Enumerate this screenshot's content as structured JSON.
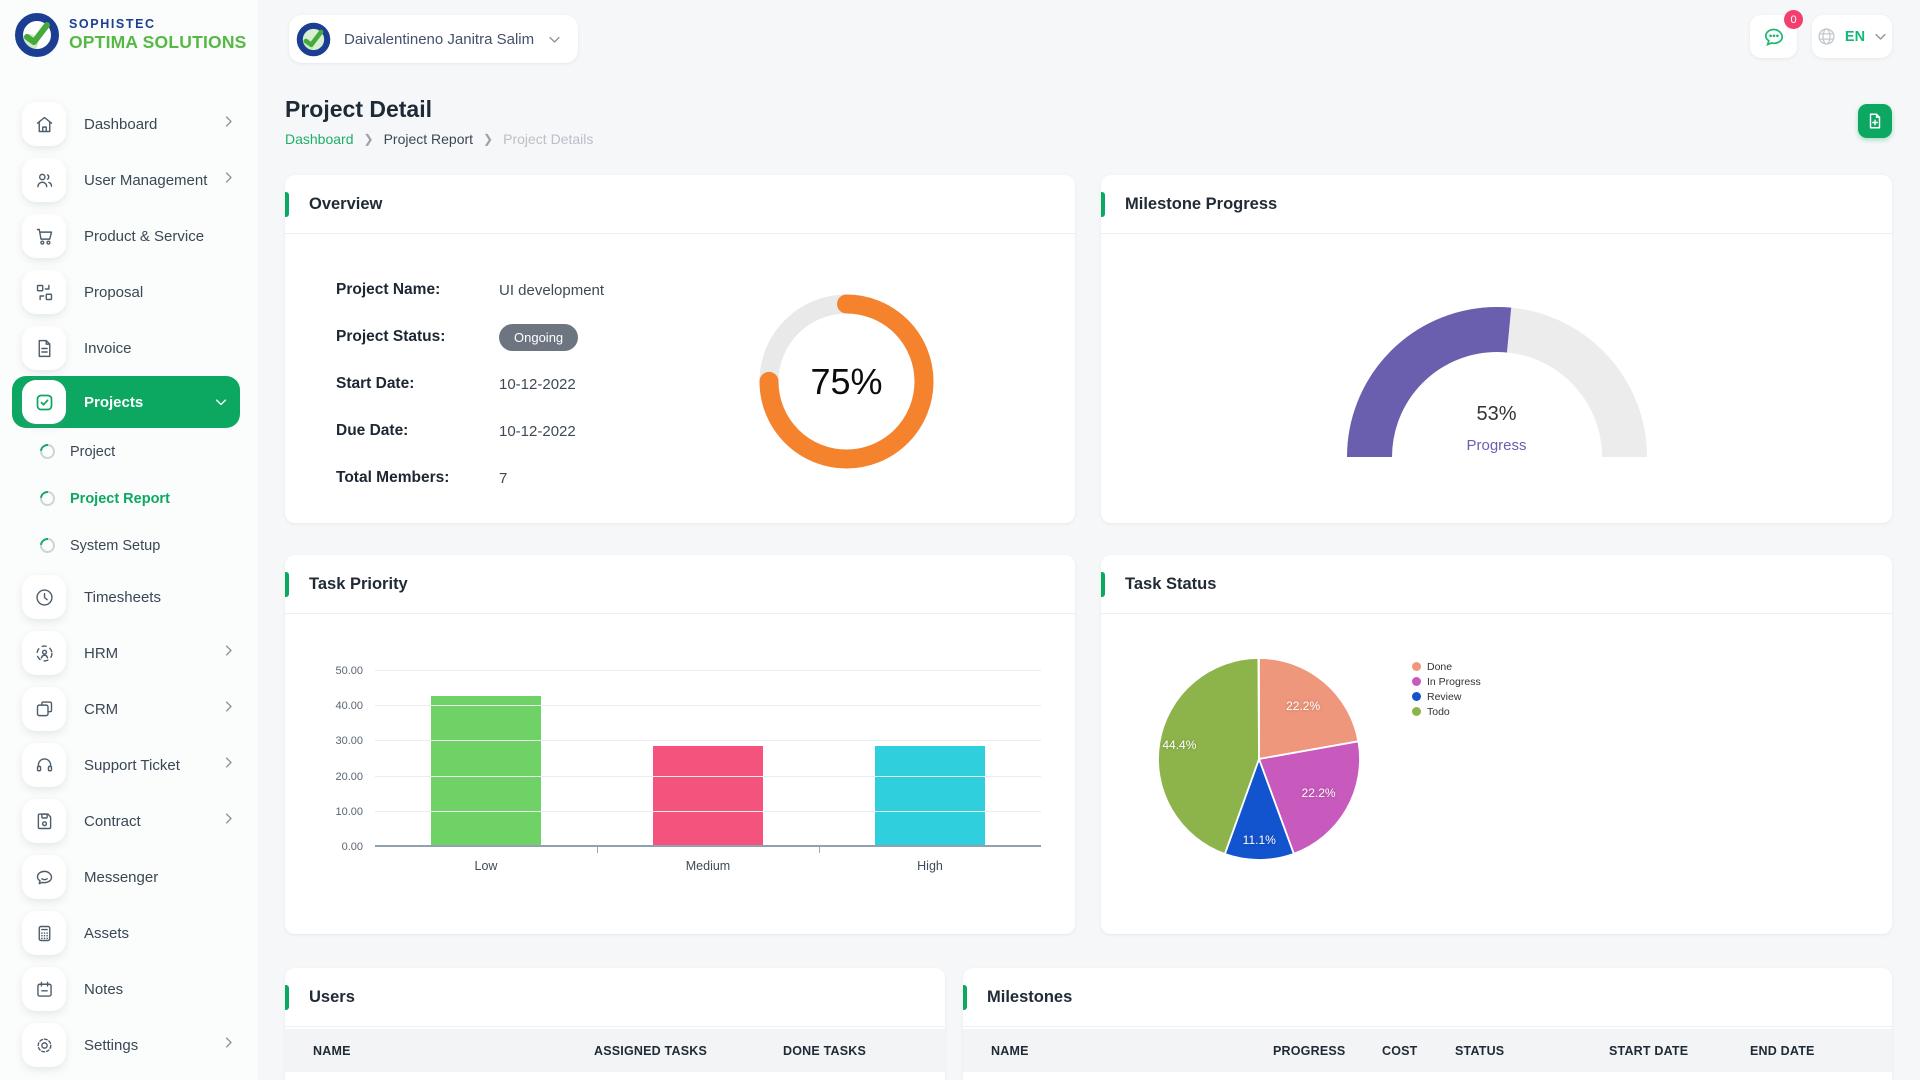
{
  "brand": {
    "line1": "SOPHISTEC",
    "line2": "OPTIMA SOLUTIONS"
  },
  "header": {
    "user_name": "Daivalentineno Janitra Salim",
    "chat_badge": "0",
    "language": "EN"
  },
  "page": {
    "title": "Project Detail",
    "breadcrumb": [
      "Dashboard",
      "Project Report",
      "Project Details"
    ]
  },
  "sidebar": {
    "items": [
      {
        "label": "Dashboard",
        "icon": "home-icon",
        "chevron": true
      },
      {
        "label": "User Management",
        "icon": "users-icon",
        "chevron": true
      },
      {
        "label": "Product & Service",
        "icon": "cart-icon",
        "chevron": false
      },
      {
        "label": "Proposal",
        "icon": "proposal-icon",
        "chevron": false
      },
      {
        "label": "Invoice",
        "icon": "invoice-icon",
        "chevron": false
      },
      {
        "label": "Projects",
        "icon": "checkbox-icon",
        "chevron": true,
        "active": true,
        "expanded": true
      },
      {
        "label": "Timesheets",
        "icon": "clock-icon",
        "chevron": false
      },
      {
        "label": "HRM",
        "icon": "person-focus-icon",
        "chevron": true
      },
      {
        "label": "CRM",
        "icon": "squares-icon",
        "chevron": true
      },
      {
        "label": "Support Ticket",
        "icon": "headset-icon",
        "chevron": true
      },
      {
        "label": "Contract",
        "icon": "floppy-icon",
        "chevron": true
      },
      {
        "label": "Messenger",
        "icon": "chat-bubble-icon",
        "chevron": false
      },
      {
        "label": "Assets",
        "icon": "calculator-icon",
        "chevron": false
      },
      {
        "label": "Notes",
        "icon": "calendar-icon",
        "chevron": false
      },
      {
        "label": "Settings",
        "icon": "gear-icon",
        "chevron": true
      }
    ],
    "subitems": [
      {
        "label": "Project",
        "active": false
      },
      {
        "label": "Project Report",
        "active": true
      },
      {
        "label": "System Setup",
        "active": false
      }
    ]
  },
  "cards": {
    "overview_title": "Overview",
    "milestone_title": "Milestone Progress",
    "priority_title": "Task Priority",
    "status_title": "Task Status",
    "users_title": "Users",
    "milestones_title": "Milestones"
  },
  "overview": {
    "fields": [
      {
        "label": "Project Name:",
        "value": "UI development"
      },
      {
        "label": "Project Status:",
        "value": "Ongoing"
      },
      {
        "label": "Start Date:",
        "value": "10-12-2022"
      },
      {
        "label": "Due Date:",
        "value": "10-12-2022"
      },
      {
        "label": "Total Members:",
        "value": "7"
      }
    ]
  },
  "chart_data": [
    {
      "type": "donut",
      "title": "Overview",
      "value": 75,
      "label": "75%",
      "color": "#f5832d",
      "track_color": "#e9e9e9"
    },
    {
      "type": "gauge",
      "title": "Milestone Progress",
      "value": 53,
      "label": "53%",
      "sublabel": "Progress",
      "color": "#6a5fae",
      "track_color": "#ececec"
    },
    {
      "type": "bar",
      "title": "Task Priority",
      "categories": [
        "Low",
        "Medium",
        "High"
      ],
      "values": [
        42.86,
        28.57,
        28.57
      ],
      "colors": [
        "#6fd266",
        "#f4537e",
        "#2fcfdd"
      ],
      "ylim": [
        0,
        50
      ],
      "yticks": [
        "0.00",
        "10.00",
        "20.00",
        "30.00",
        "40.00",
        "50.00"
      ],
      "grid": true,
      "legend": "none"
    },
    {
      "type": "pie",
      "title": "Task Status",
      "labels": [
        "Done",
        "In Progress",
        "Review",
        "Todo"
      ],
      "values": [
        22.2,
        22.2,
        11.1,
        44.4
      ],
      "slice_labels": [
        "22.2%",
        "22.2%",
        "11.1%",
        "44.4%"
      ],
      "colors": [
        "#ef977c",
        "#c85abd",
        "#1253ce",
        "#8db44a"
      ],
      "legend_position": "right"
    }
  ],
  "users_table": {
    "title": "Users",
    "columns": [
      "NAME",
      "ASSIGNED TASKS",
      "DONE TASKS"
    ],
    "rows": []
  },
  "milestones_table": {
    "title": "Milestones",
    "columns": [
      "NAME",
      "PROGRESS",
      "COST",
      "STATUS",
      "START DATE",
      "END DATE"
    ],
    "rows": []
  },
  "icons": {
    "logo-mark": "blue ring with green check",
    "chat": "speech bubble with dots",
    "globe": "globe",
    "export": "file-plus"
  },
  "colors": {
    "accent_green": "#0ca861",
    "logo_blue": "#1c3e92",
    "logo_green": "#56b944",
    "badge_gray": "#6d7680",
    "chat_badge_pink": "#f43f6e"
  }
}
